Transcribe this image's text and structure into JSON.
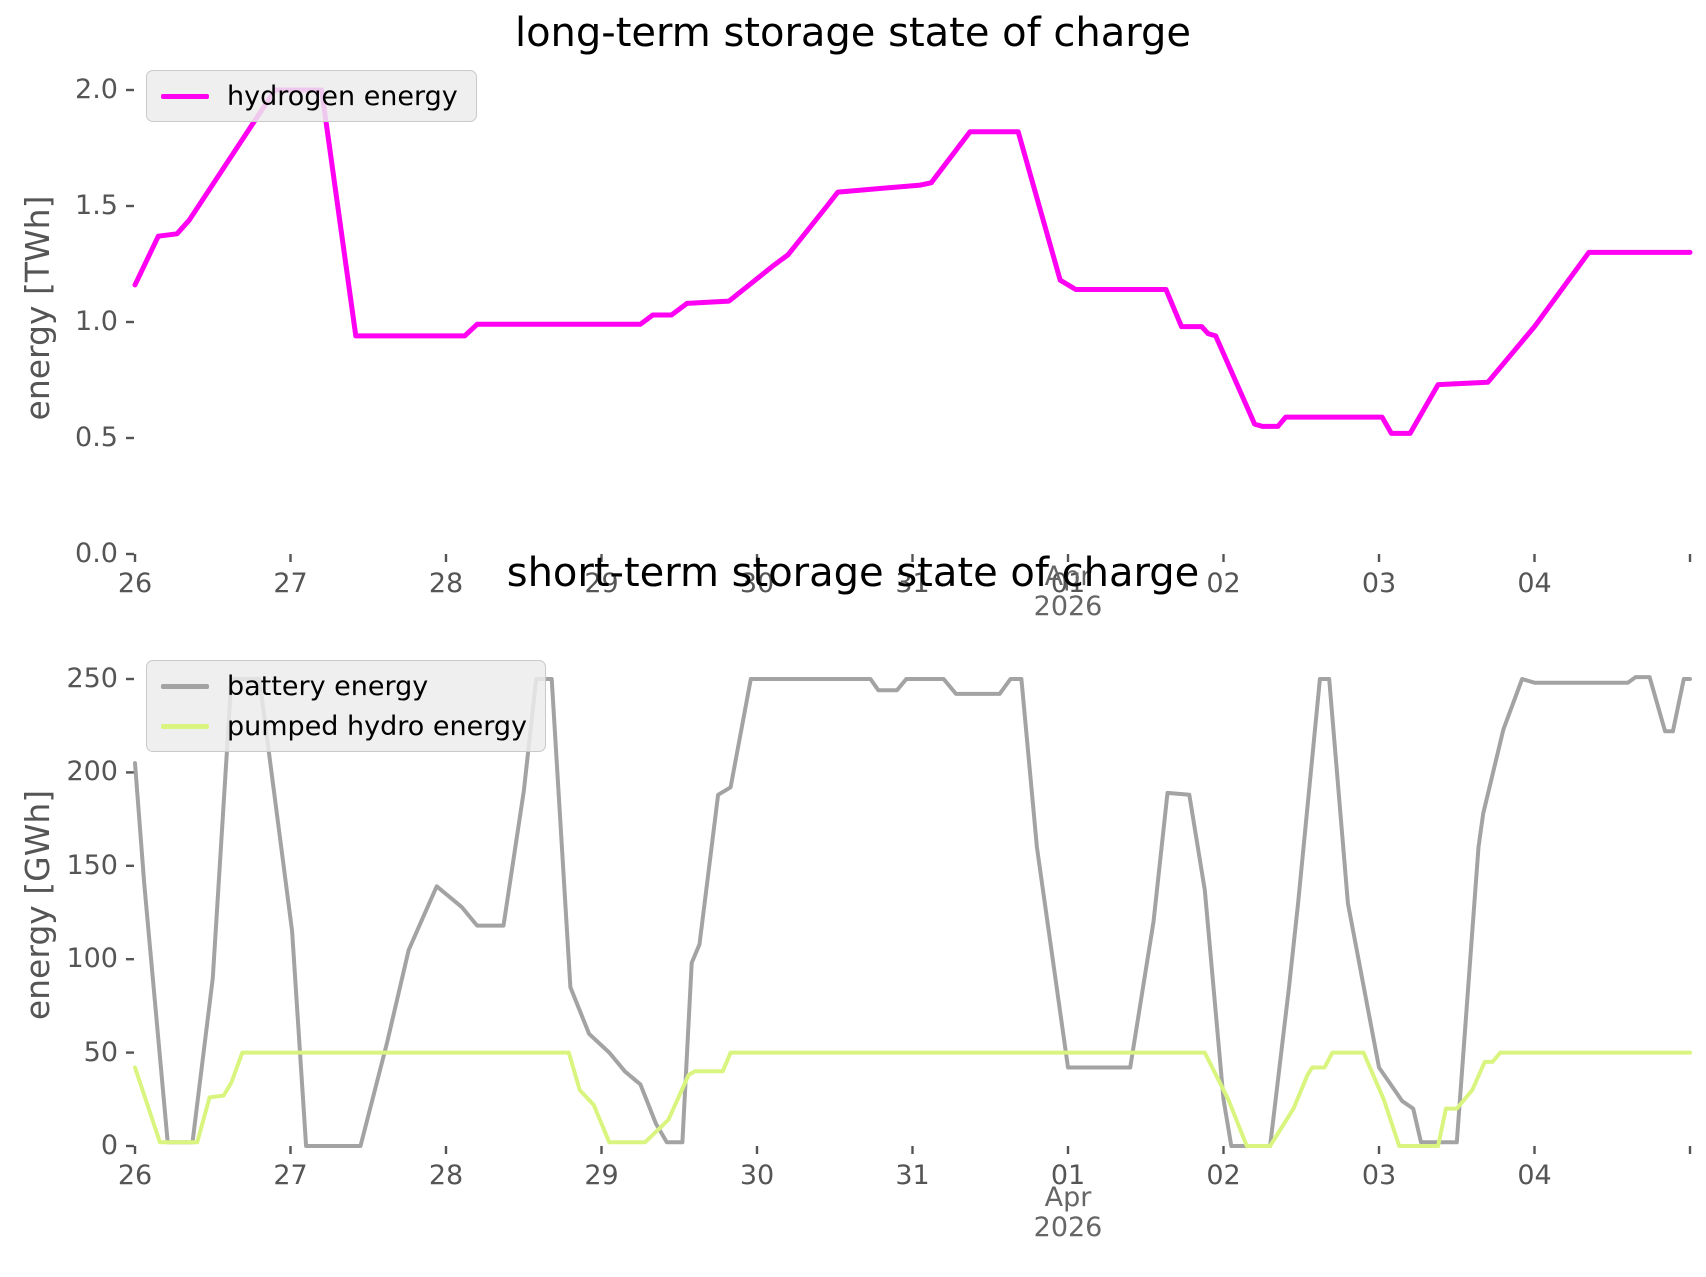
{
  "figure_background": "#ffffff",
  "tick_color": "#555555",
  "offset_label_color": "#666666",
  "chart_data": [
    {
      "id": "long-term",
      "type": "line",
      "title": "long-term storage state of charge",
      "ylabel": "energy [TWh]",
      "xlabel": "",
      "x_unit": "days since 2026-03-26",
      "x_range_dates": [
        "2026-03-26",
        "2026-04-05"
      ],
      "ylim": [
        0,
        2.11
      ],
      "grid": false,
      "legend_position": "upper-left",
      "x_ticks": [
        {
          "d": 0,
          "label": "26"
        },
        {
          "d": 1,
          "label": "27"
        },
        {
          "d": 2,
          "label": "28"
        },
        {
          "d": 3,
          "label": "29"
        },
        {
          "d": 4,
          "label": "30"
        },
        {
          "d": 5,
          "label": "31"
        },
        {
          "d": 6,
          "label": "01"
        },
        {
          "d": 7,
          "label": "02"
        },
        {
          "d": 8,
          "label": "03"
        },
        {
          "d": 9,
          "label": "04"
        },
        {
          "d": 10,
          "label": ""
        }
      ],
      "x_offset_label": {
        "d": 6,
        "lines": [
          "Apr",
          "2026"
        ]
      },
      "y_ticks": [
        {
          "v": 0,
          "label": "0.0"
        },
        {
          "v": 0.5,
          "label": "0.5"
        },
        {
          "v": 1,
          "label": "1.0"
        },
        {
          "v": 1.5,
          "label": "1.5"
        },
        {
          "v": 2,
          "label": "2.0"
        }
      ],
      "series": [
        {
          "name": "hydrogen energy",
          "color": "#ff00f2",
          "line_width": 5,
          "points": [
            [
              0,
              1.16
            ],
            [
              0.15,
              1.37
            ],
            [
              0.27,
              1.38
            ],
            [
              0.35,
              1.44
            ],
            [
              0.9,
              2.0
            ],
            [
              1.2,
              2.0
            ],
            [
              1.42,
              0.94
            ],
            [
              2.12,
              0.94
            ],
            [
              2.2,
              0.99
            ],
            [
              3.25,
              0.99
            ],
            [
              3.33,
              1.03
            ],
            [
              3.45,
              1.03
            ],
            [
              3.55,
              1.08
            ],
            [
              3.82,
              1.09
            ],
            [
              4.1,
              1.24
            ],
            [
              4.2,
              1.29
            ],
            [
              4.45,
              1.5
            ],
            [
              4.52,
              1.56
            ],
            [
              5.05,
              1.59
            ],
            [
              5.12,
              1.6
            ],
            [
              5.37,
              1.82
            ],
            [
              5.68,
              1.82
            ],
            [
              5.95,
              1.18
            ],
            [
              6.05,
              1.14
            ],
            [
              6.63,
              1.14
            ],
            [
              6.73,
              0.98
            ],
            [
              6.86,
              0.98
            ],
            [
              6.9,
              0.95
            ],
            [
              6.95,
              0.94
            ],
            [
              7.2,
              0.56
            ],
            [
              7.25,
              0.55
            ],
            [
              7.35,
              0.55
            ],
            [
              7.4,
              0.59
            ],
            [
              8.02,
              0.59
            ],
            [
              8.08,
              0.52
            ],
            [
              8.2,
              0.52
            ],
            [
              8.38,
              0.73
            ],
            [
              8.7,
              0.74
            ],
            [
              9.0,
              0.98
            ],
            [
              9.35,
              1.3
            ],
            [
              10,
              1.3
            ]
          ]
        }
      ]
    },
    {
      "id": "short-term",
      "type": "line",
      "title": "short-term storage state of charge",
      "ylabel": "energy [GWh]",
      "xlabel": "",
      "x_unit": "days since 2026-03-26",
      "x_range_dates": [
        "2026-03-26",
        "2026-04-05"
      ],
      "ylim": [
        0,
        260
      ],
      "grid": false,
      "legend_position": "upper-left",
      "x_ticks": [
        {
          "d": 0,
          "label": "26"
        },
        {
          "d": 1,
          "label": "27"
        },
        {
          "d": 2,
          "label": "28"
        },
        {
          "d": 3,
          "label": "29"
        },
        {
          "d": 4,
          "label": "30"
        },
        {
          "d": 5,
          "label": "31"
        },
        {
          "d": 6,
          "label": "01"
        },
        {
          "d": 7,
          "label": "02"
        },
        {
          "d": 8,
          "label": "03"
        },
        {
          "d": 9,
          "label": "04"
        },
        {
          "d": 10,
          "label": ""
        }
      ],
      "x_offset_label": {
        "d": 6,
        "lines": [
          "Apr",
          "2026"
        ]
      },
      "y_ticks": [
        {
          "v": 0,
          "label": "0"
        },
        {
          "v": 50,
          "label": "50"
        },
        {
          "v": 100,
          "label": "100"
        },
        {
          "v": 150,
          "label": "150"
        },
        {
          "v": 200,
          "label": "200"
        },
        {
          "v": 250,
          "label": "250"
        }
      ],
      "series": [
        {
          "name": "battery energy",
          "color": "#a3a3a3",
          "line_width": 4,
          "points": [
            [
              0,
              205
            ],
            [
              0.06,
              140
            ],
            [
              0.21,
              2
            ],
            [
              0.37,
              2
            ],
            [
              0.5,
              90
            ],
            [
              0.62,
              250
            ],
            [
              0.8,
              250
            ],
            [
              1.01,
              115
            ],
            [
              1.1,
              0
            ],
            [
              1.45,
              0
            ],
            [
              1.62,
              55
            ],
            [
              1.76,
              105
            ],
            [
              1.94,
              139
            ],
            [
              2.1,
              128
            ],
            [
              2.2,
              118
            ],
            [
              2.37,
              118
            ],
            [
              2.5,
              190
            ],
            [
              2.58,
              250
            ],
            [
              2.68,
              250
            ],
            [
              2.8,
              85
            ],
            [
              2.92,
              60
            ],
            [
              3.05,
              50
            ],
            [
              3.15,
              40
            ],
            [
              3.25,
              33
            ],
            [
              3.35,
              12
            ],
            [
              3.42,
              2
            ],
            [
              3.52,
              2
            ],
            [
              3.58,
              98
            ],
            [
              3.63,
              108
            ],
            [
              3.75,
              188
            ],
            [
              3.83,
              192
            ],
            [
              3.96,
              250
            ],
            [
              4.73,
              250
            ],
            [
              4.78,
              244
            ],
            [
              4.9,
              244
            ],
            [
              4.96,
              250
            ],
            [
              5.2,
              250
            ],
            [
              5.28,
              242
            ],
            [
              5.56,
              242
            ],
            [
              5.63,
              250
            ],
            [
              5.7,
              250
            ],
            [
              5.8,
              160
            ],
            [
              6.0,
              42
            ],
            [
              6.4,
              42
            ],
            [
              6.55,
              120
            ],
            [
              6.64,
              189
            ],
            [
              6.78,
              188
            ],
            [
              6.88,
              137
            ],
            [
              7.0,
              25
            ],
            [
              7.05,
              0
            ],
            [
              7.3,
              0
            ],
            [
              7.42,
              84
            ],
            [
              7.48,
              130
            ],
            [
              7.62,
              250
            ],
            [
              7.68,
              250
            ],
            [
              7.8,
              130
            ],
            [
              8.0,
              42
            ],
            [
              8.15,
              24
            ],
            [
              8.22,
              20
            ],
            [
              8.27,
              2
            ],
            [
              8.5,
              2
            ],
            [
              8.6,
              115
            ],
            [
              8.64,
              160
            ],
            [
              8.67,
              178
            ],
            [
              8.8,
              223
            ],
            [
              8.92,
              250
            ],
            [
              9.0,
              248
            ],
            [
              9.6,
              248
            ],
            [
              9.65,
              251
            ],
            [
              9.74,
              251
            ],
            [
              9.84,
              222
            ],
            [
              9.89,
              222
            ],
            [
              9.96,
              250
            ],
            [
              10,
              250
            ]
          ]
        },
        {
          "name": "pumped hydro energy",
          "color": "#d9f57f",
          "line_width": 4,
          "points": [
            [
              0,
              42
            ],
            [
              0.16,
              2
            ],
            [
              0.4,
              2
            ],
            [
              0.48,
              26
            ],
            [
              0.57,
              27
            ],
            [
              0.62,
              34
            ],
            [
              0.69,
              50
            ],
            [
              2.79,
              50
            ],
            [
              2.86,
              30
            ],
            [
              2.95,
              22
            ],
            [
              3.05,
              2
            ],
            [
              3.28,
              2
            ],
            [
              3.43,
              14
            ],
            [
              3.56,
              38
            ],
            [
              3.6,
              40
            ],
            [
              3.78,
              40
            ],
            [
              3.83,
              50
            ],
            [
              6.88,
              50
            ],
            [
              7.03,
              25
            ],
            [
              7.15,
              0
            ],
            [
              7.3,
              0
            ],
            [
              7.45,
              20
            ],
            [
              7.54,
              38
            ],
            [
              7.57,
              42
            ],
            [
              7.65,
              42
            ],
            [
              7.7,
              50
            ],
            [
              7.9,
              50
            ],
            [
              8.03,
              25
            ],
            [
              8.13,
              0
            ],
            [
              8.38,
              0
            ],
            [
              8.43,
              20
            ],
            [
              8.5,
              20
            ],
            [
              8.6,
              30
            ],
            [
              8.68,
              45
            ],
            [
              8.73,
              45
            ],
            [
              8.78,
              50
            ],
            [
              10,
              50
            ]
          ]
        }
      ]
    }
  ]
}
